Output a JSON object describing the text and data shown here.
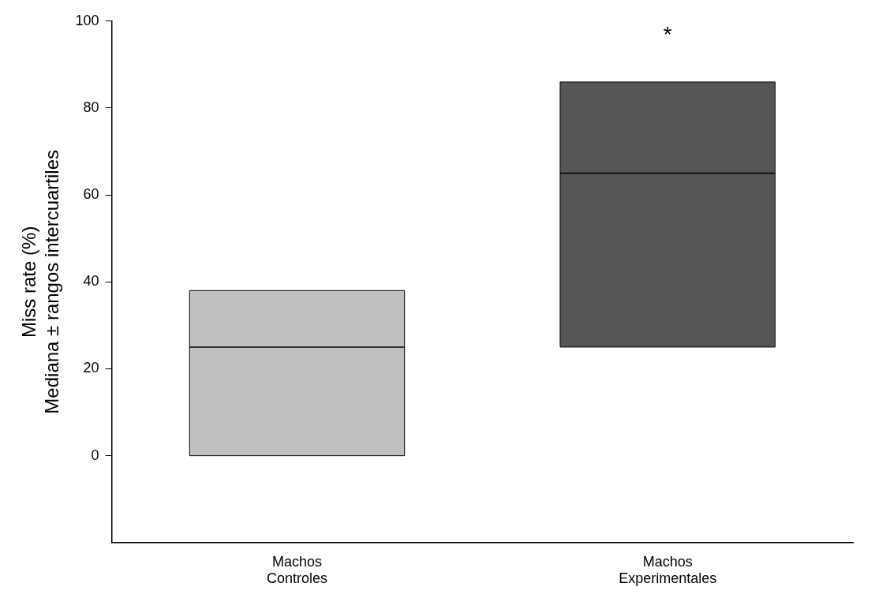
{
  "chart_data": {
    "type": "box",
    "ylabel": "Miss rate (%)\nMediana ± rangos intercuartiles",
    "categories": [
      "Machos\nControles",
      "Machos\nExperimentales"
    ],
    "boxes": [
      {
        "low": 0,
        "q1": 0,
        "median": 25,
        "q3": 38,
        "high": 38
      },
      {
        "low": 25,
        "q1": 25,
        "median": 65,
        "q3": 86,
        "high": 86
      }
    ],
    "colors": [
      "#c0c0c0",
      "#555555"
    ],
    "ylim": [
      -20,
      100
    ],
    "yticks": [
      0,
      20,
      40,
      60,
      80,
      100
    ],
    "annotations": [
      "*"
    ]
  }
}
